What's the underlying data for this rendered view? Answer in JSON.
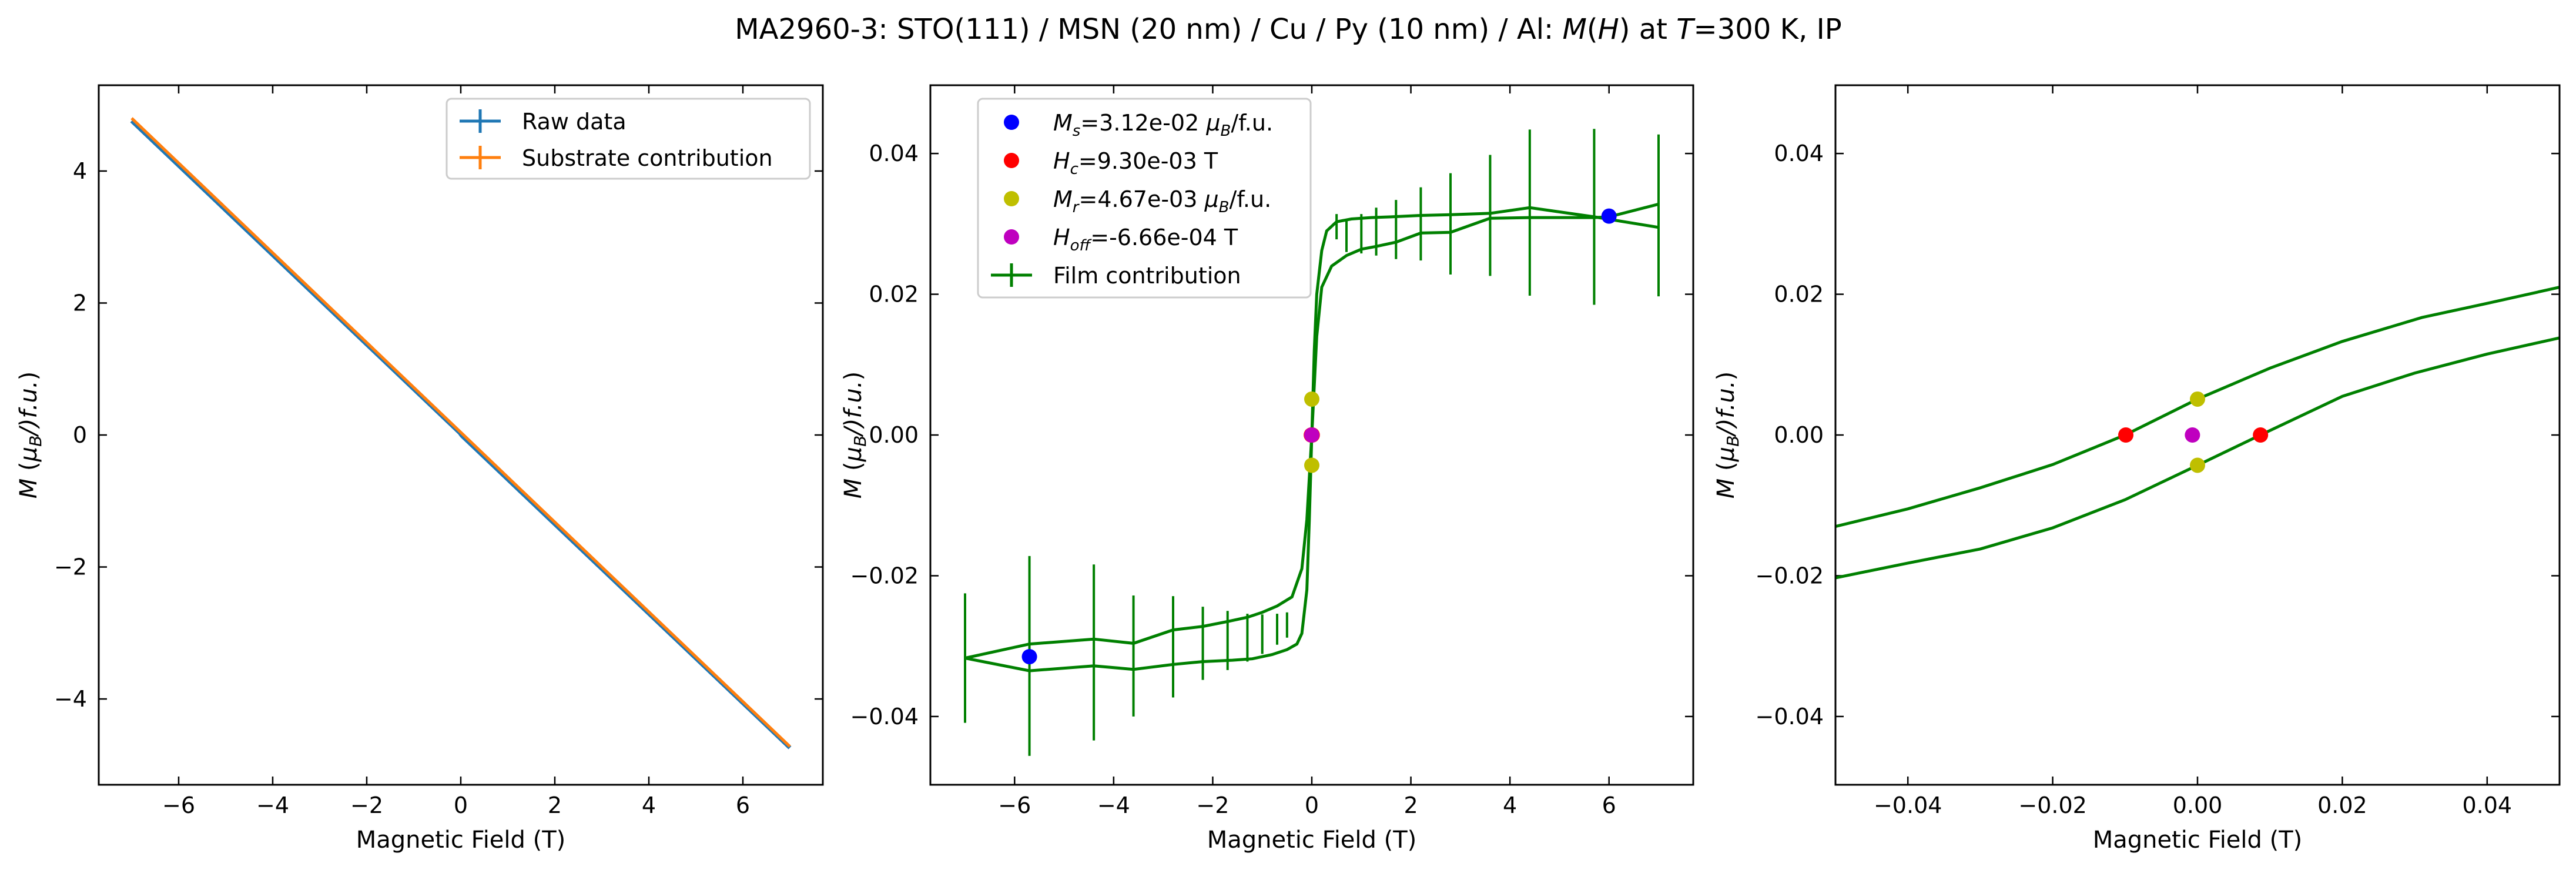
{
  "figure_title": "MA2960-3: STO(111)  / MSN (20 nm) / Cu / Py (10 nm) / Al: M(H) at T=300 K, IP",
  "colors": {
    "blue": "#1f77b4",
    "orange": "#ff7f0e",
    "green": "#008000",
    "ms": "#0000ff",
    "hc": "#ff0000",
    "mr": "#bfbf00",
    "hoff": "#bf00bf"
  },
  "chart_data": [
    {
      "type": "line",
      "xlabel": "Magnetic Field (T)",
      "ylabel": "M (μB/f.u.)",
      "xlim": [
        -7.7,
        7.7
      ],
      "ylim": [
        -5.3,
        5.3
      ],
      "xticks": [
        -6,
        -4,
        -2,
        0,
        2,
        4,
        6
      ],
      "yticks": [
        -4,
        -2,
        0,
        2,
        4
      ],
      "legend_position": "upper-right",
      "series": [
        {
          "name": "Raw data",
          "color": "#1f77b4",
          "points": [
            [
              -7,
              4.76
            ],
            [
              -0.02,
              0.03
            ],
            [
              0.02,
              -0.01
            ],
            [
              7,
              -4.74
            ]
          ]
        },
        {
          "name": "Substrate contribution",
          "color": "#ff7f0e",
          "points": [
            [
              -7,
              4.8
            ],
            [
              7,
              -4.72
            ]
          ]
        }
      ]
    },
    {
      "type": "line",
      "xlabel": "Magnetic Field (T)",
      "ylabel": "M (μB/f.u.)",
      "xlim": [
        -7.7,
        7.7
      ],
      "ylim": [
        -0.0497,
        0.0497
      ],
      "xticks": [
        -6,
        -4,
        -2,
        0,
        2,
        4,
        6
      ],
      "yticks": [
        -0.04,
        -0.02,
        0.0,
        0.02,
        0.04
      ],
      "legend_position": "upper-left",
      "series": [
        {
          "name": "Film contribution",
          "color": "#008000",
          "branches": [
            [
              [
                -7,
                -0.0317
              ],
              [
                -5.7,
                -0.0297
              ],
              [
                -4.4,
                -0.029
              ],
              [
                -3.6,
                -0.0296
              ],
              [
                -2.8,
                -0.0277
              ],
              [
                -2.2,
                -0.0272
              ],
              [
                -1.7,
                -0.0265
              ],
              [
                -1.3,
                -0.0259
              ],
              [
                -1.0,
                -0.0252
              ],
              [
                -0.7,
                -0.0243
              ],
              [
                -0.4,
                -0.023
              ],
              [
                -0.2,
                -0.019
              ],
              [
                -0.1,
                -0.012
              ],
              [
                0,
                0.0
              ],
              [
                0.05,
                0.012
              ],
              [
                0.1,
                0.02
              ],
              [
                0.2,
                0.0262
              ],
              [
                0.3,
                0.029
              ],
              [
                0.5,
                0.0303
              ],
              [
                0.8,
                0.0307
              ],
              [
                1.2,
                0.0309
              ],
              [
                1.6,
                0.031
              ],
              [
                2.2,
                0.0312
              ],
              [
                2.8,
                0.0313
              ],
              [
                3.6,
                0.0315
              ],
              [
                4.4,
                0.0323
              ],
              [
                5.7,
                0.031
              ],
              [
                7,
                0.0295
              ]
            ],
            [
              [
                7,
                0.0328
              ],
              [
                6,
                0.031
              ],
              [
                5.7,
                0.0309
              ],
              [
                4.4,
                0.0309
              ],
              [
                3.6,
                0.0308
              ],
              [
                2.8,
                0.0288
              ],
              [
                2.2,
                0.0287
              ],
              [
                1.7,
                0.0274
              ],
              [
                1.3,
                0.0268
              ],
              [
                1.0,
                0.0264
              ],
              [
                0.7,
                0.0255
              ],
              [
                0.4,
                0.024
              ],
              [
                0.2,
                0.021
              ],
              [
                0.1,
                0.014
              ],
              [
                0,
                0.0
              ],
              [
                -0.05,
                -0.012
              ],
              [
                -0.1,
                -0.022
              ],
              [
                -0.2,
                -0.0282
              ],
              [
                -0.3,
                -0.0297
              ],
              [
                -0.5,
                -0.0305
              ],
              [
                -0.8,
                -0.0312
              ],
              [
                -1.2,
                -0.0318
              ],
              [
                -1.6,
                -0.032
              ],
              [
                -2.2,
                -0.0322
              ],
              [
                -2.8,
                -0.0326
              ],
              [
                -3.6,
                -0.0333
              ],
              [
                -4.4,
                -0.0328
              ],
              [
                -5.7,
                -0.0335
              ],
              [
                -7,
                -0.0317
              ]
            ]
          ],
          "error_bars": [
            [
              -7,
              -0.0317,
              0.0092
            ],
            [
              -5.7,
              -0.0314,
              0.0142
            ],
            [
              -4.4,
              -0.0309,
              0.0125
            ],
            [
              -3.6,
              -0.0314,
              0.0086
            ],
            [
              -2.8,
              -0.0301,
              0.0072
            ],
            [
              -2.2,
              -0.0296,
              0.0052
            ],
            [
              -1.7,
              -0.0292,
              0.0042
            ],
            [
              -1.3,
              -0.0288,
              0.0034
            ],
            [
              -1.0,
              -0.0283,
              0.0028
            ],
            [
              -0.7,
              -0.0276,
              0.0022
            ],
            [
              -0.5,
              -0.027,
              0.0018
            ],
            [
              0.5,
              0.0296,
              0.0018
            ],
            [
              0.7,
              0.0282,
              0.0022
            ],
            [
              1.0,
              0.0286,
              0.0028
            ],
            [
              1.3,
              0.0289,
              0.0034
            ],
            [
              1.7,
              0.0292,
              0.0042
            ],
            [
              2.2,
              0.03,
              0.0052
            ],
            [
              2.8,
              0.03,
              0.0072
            ],
            [
              3.6,
              0.0312,
              0.0086
            ],
            [
              4.4,
              0.0316,
              0.0118
            ],
            [
              5.7,
              0.031,
              0.0125
            ],
            [
              7,
              0.0312,
              0.0115
            ]
          ]
        }
      ],
      "markers": [
        {
          "label_main": "M",
          "label_sub": "s",
          "label_rest": "=3.12e-02 μB/f.u.",
          "color": "#0000ff",
          "points": [
            [
              -5.7,
              -0.0315
            ],
            [
              6.0,
              0.0311
            ]
          ]
        },
        {
          "label_main": "H",
          "label_sub": "c",
          "label_rest": "=9.30e-03 T",
          "color": "#ff0000",
          "points": [
            [
              -0.0099,
              0.0
            ],
            [
              0.0087,
              0.0
            ]
          ]
        },
        {
          "label_main": "M",
          "label_sub": "r",
          "label_rest": "=4.67e-03 μB/f.u.",
          "color": "#bfbf00",
          "points": [
            [
              0.0,
              0.0051
            ],
            [
              0.0,
              -0.0043
            ]
          ]
        },
        {
          "label_main": "H",
          "label_sub": "off",
          "label_rest": "=-6.66e-04 T",
          "color": "#bf00bf",
          "points": [
            [
              -0.0007,
              0.0
            ]
          ]
        }
      ]
    },
    {
      "type": "line",
      "xlabel": "Magnetic Field (T)",
      "ylabel": "M (μB/f.u.)",
      "xlim": [
        -0.05,
        0.05
      ],
      "ylim": [
        -0.0497,
        0.0497
      ],
      "xticks": [
        -0.04,
        -0.02,
        0.0,
        0.02,
        0.04
      ],
      "yticks": [
        -0.04,
        -0.02,
        0.0,
        0.02,
        0.04
      ],
      "series": [
        {
          "name": "Film contribution",
          "color": "#008000",
          "branches": [
            [
              [
                -0.05,
                -0.013
              ],
              [
                -0.04,
                -0.0105
              ],
              [
                -0.03,
                -0.0075
              ],
              [
                -0.02,
                -0.0042
              ],
              [
                -0.01,
                0.0
              ],
              [
                0.0,
                0.0051
              ],
              [
                0.01,
                0.0095
              ],
              [
                0.02,
                0.0133
              ],
              [
                0.031,
                0.0167
              ],
              [
                0.04,
                0.0187
              ],
              [
                0.05,
                0.021
              ]
            ],
            [
              [
                0.05,
                0.0138
              ],
              [
                0.04,
                0.0115
              ],
              [
                0.03,
                0.0088
              ],
              [
                0.02,
                0.0055
              ],
              [
                0.0087,
                0.0
              ],
              [
                0.0,
                -0.0043
              ],
              [
                -0.01,
                -0.0092
              ],
              [
                -0.02,
                -0.0132
              ],
              [
                -0.03,
                -0.0162
              ],
              [
                -0.04,
                -0.0182
              ],
              [
                -0.05,
                -0.0203
              ]
            ]
          ]
        }
      ],
      "markers": [
        {
          "color": "#ff0000",
          "points": [
            [
              -0.0099,
              0.0
            ],
            [
              0.0087,
              0.0
            ]
          ]
        },
        {
          "color": "#bfbf00",
          "points": [
            [
              0.0,
              0.0051
            ],
            [
              0.0,
              -0.0043
            ]
          ]
        },
        {
          "color": "#bf00bf",
          "points": [
            [
              -0.0007,
              0.0
            ]
          ]
        }
      ]
    }
  ],
  "panel_labels": {
    "xlabel": "Magnetic Field (T)",
    "ylabel_main": "M",
    "ylabel_open": " (",
    "ylabel_mu": "μ",
    "ylabel_b": "B",
    "ylabel_rest": "/f.u.)"
  }
}
